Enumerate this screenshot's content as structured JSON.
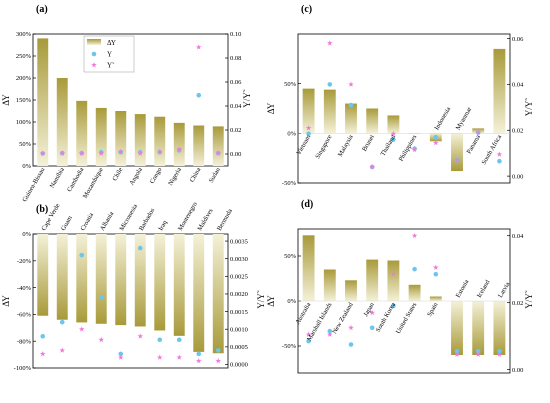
{
  "colors": {
    "bar_top": "#a89a3a",
    "bar_bottom": "#f4f1d8",
    "upsilon_marker": "#6cc6ec",
    "upsilon_tilde_marker": "#f07adc",
    "axis": "#000000"
  },
  "legend": {
    "items": [
      {
        "label": "ΔΥ",
        "type": "bar"
      },
      {
        "label": "Υ",
        "type": "circle"
      },
      {
        "label": "Υ̃",
        "type": "star"
      }
    ]
  },
  "chart_data": [
    {
      "id": "a",
      "panel_label": "(a)",
      "type": "bar",
      "ylabel": "ΔΥ",
      "y2label": "Υ/Υ̃",
      "ylim": [
        0,
        3
      ],
      "yticks": [
        0,
        0.5,
        1,
        1.5,
        2,
        2.5,
        3
      ],
      "ytick_labels": [
        "0%",
        "50%",
        "100%",
        "150%",
        "200%",
        "250%",
        "300%"
      ],
      "y2lim": [
        -0.01,
        0.1
      ],
      "y2ticks": [
        0,
        0.02,
        0.04,
        0.06,
        0.08,
        0.1
      ],
      "y2tick_labels": [
        "0.00",
        "0.02",
        "0.04",
        "0.06",
        "0.08",
        "0.10"
      ],
      "categories": [
        "Guinea-Bissau",
        "Namibia",
        "Cambodia",
        "Mozambique",
        "Chile",
        "Angola",
        "Congo",
        "Nigeria",
        "China",
        "Sudan"
      ],
      "series": [
        {
          "name": "ΔΥ",
          "values": [
            2.9,
            2.0,
            1.48,
            1.32,
            1.25,
            1.18,
            1.12,
            0.98,
            0.92,
            0.9
          ]
        },
        {
          "name": "Υ",
          "values": [
            0.0005,
            0.0008,
            0.0008,
            0.0015,
            0.0015,
            0.0015,
            0.0015,
            0.003,
            0.049,
            0.0008
          ]
        },
        {
          "name": "Υ̃",
          "values": [
            0.0005,
            0.0005,
            0.0005,
            0.0005,
            0.002,
            0.0005,
            0.002,
            0.004,
            0.089,
            0.0005
          ]
        }
      ],
      "legend_position": "top-left"
    },
    {
      "id": "b",
      "panel_label": "(b)",
      "type": "bar",
      "ylabel": "ΔΥ",
      "y2label": "Υ/Υ̃",
      "ylim": [
        -1.0,
        0
      ],
      "yticks": [
        -1.0,
        -0.8,
        -0.6,
        -0.4,
        -0.2,
        0
      ],
      "ytick_labels": [
        "-100%",
        "-80%",
        "-60%",
        "-40%",
        "-20%",
        "0%"
      ],
      "y2lim": [
        -0.0001,
        0.0037
      ],
      "y2ticks": [
        0,
        0.0005,
        0.001,
        0.0015,
        0.002,
        0.0025,
        0.003,
        0.0035
      ],
      "y2tick_labels": [
        "0.0000",
        "0.0005",
        "0.0010",
        "0.0015",
        "0.0020",
        "0.0025",
        "0.0030",
        "0.0035"
      ],
      "categories": [
        "Cape Verde",
        "Guam",
        "Croatia",
        "Albania",
        "Micronesia",
        "Barbados",
        "Iraq",
        "Montenegro",
        "Maldives",
        "Bermuda"
      ],
      "series": [
        {
          "name": "ΔΥ",
          "values": [
            -0.61,
            -0.64,
            -0.66,
            -0.67,
            -0.68,
            -0.69,
            -0.72,
            -0.76,
            -0.88,
            -0.89
          ]
        },
        {
          "name": "Υ",
          "values": [
            0.0008,
            0.0012,
            0.0031,
            0.0019,
            0.0003,
            0.0033,
            0.0007,
            0.0007,
            0.0003,
            0.0004
          ]
        },
        {
          "name": "Υ̃",
          "values": [
            0.0003,
            0.0004,
            0.001,
            0.0007,
            0.0002,
            0.0008,
            0.0002,
            0.0002,
            0.0001,
            0.0001
          ]
        }
      ]
    },
    {
      "id": "c",
      "panel_label": "(c)",
      "type": "bar",
      "ylabel": "ΔΥ",
      "y2label": "Υ/Υ̃",
      "ylim": [
        -0.5,
        1.0
      ],
      "yticks": [
        -0.5,
        0,
        0.5
      ],
      "ytick_labels": [
        "-50%",
        "0%",
        "50%"
      ],
      "y2lim": [
        -0.003,
        0.062
      ],
      "y2ticks": [
        0,
        0.02,
        0.04,
        0.06
      ],
      "y2tick_labels": [
        "0.00",
        "0.02",
        "0.04",
        "0.06"
      ],
      "categories": [
        "Vietnam",
        "Singapore",
        "Malaysia",
        "Brunei",
        "Thailand",
        "Philippines",
        "Indonesia",
        "Myanmar",
        "Panama",
        "South Africa"
      ],
      "series": [
        {
          "name": "ΔΥ",
          "values": [
            0.45,
            0.44,
            0.3,
            0.25,
            0.18,
            0.0,
            -0.08,
            -0.38,
            0.05,
            0.85
          ]
        },
        {
          "name": "Υ",
          "values": [
            0.0185,
            0.04,
            0.031,
            0.004,
            0.016,
            0.012,
            0.017,
            0.007,
            0.019,
            0.0065
          ]
        },
        {
          "name": "Υ̃",
          "values": [
            0.021,
            0.058,
            0.04,
            0.004,
            0.0185,
            0.0115,
            0.0145,
            0.007,
            0.019,
            0.0095
          ]
        }
      ]
    },
    {
      "id": "d",
      "panel_label": "(d)",
      "type": "bar",
      "ylabel": "ΔΥ",
      "y2label": "Υ/Υ̃",
      "ylim": [
        -0.8,
        0.8
      ],
      "yticks": [
        -0.5,
        0,
        0.5
      ],
      "ytick_labels": [
        "-50%",
        "0%",
        "50%"
      ],
      "y2lim": [
        -0.001,
        0.042
      ],
      "y2ticks": [
        0,
        0.02,
        0.04
      ],
      "y2tick_labels": [
        "0.00",
        "0.02",
        "0.04"
      ],
      "categories": [
        "Australia",
        "Marshall Islands",
        "New Zealand",
        "Japan",
        "South Korea",
        "United States",
        "Spain",
        "Estonia",
        "Iceland",
        "Latvia"
      ],
      "series": [
        {
          "name": "ΔΥ",
          "values": [
            0.73,
            0.35,
            0.23,
            0.46,
            0.45,
            0.18,
            0.05,
            -0.6,
            -0.6,
            -0.6
          ]
        },
        {
          "name": "Υ",
          "values": [
            0.0085,
            0.0115,
            0.0075,
            0.0125,
            0.019,
            0.03,
            0.0285,
            0.0055,
            0.0055,
            0.0055
          ]
        },
        {
          "name": "Υ̃",
          "values": [
            0.0105,
            0.0105,
            0.0125,
            0.017,
            0.0285,
            0.04,
            0.0305,
            0.0045,
            0.0045,
            0.0045
          ]
        }
      ]
    }
  ]
}
